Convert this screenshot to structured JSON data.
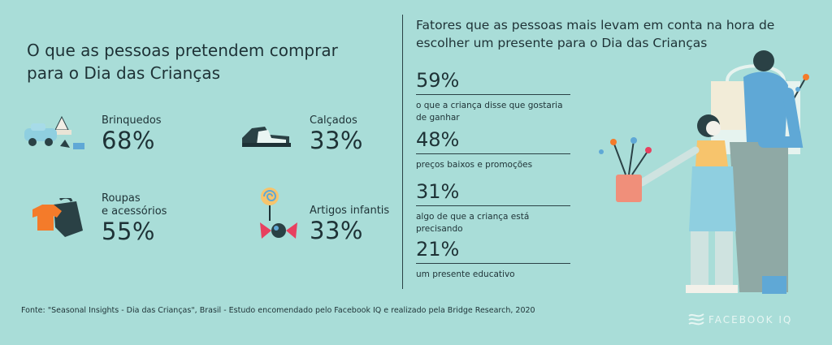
{
  "left": {
    "title_line1": "O que as pessoas pretendem comprar",
    "title_line2": "para o Dia das Crianças",
    "items": [
      {
        "label_line1": "Brinquedos",
        "label_line2": "",
        "percent": "68%",
        "icon": "toy-car-icon"
      },
      {
        "label_line1": "Calçados",
        "label_line2": "",
        "percent": "33%",
        "icon": "shoes-icon"
      },
      {
        "label_line1": "Roupas",
        "label_line2": "e acessórios",
        "percent": "55%",
        "icon": "clothes-icon"
      },
      {
        "label_line1": "Artigos infantis",
        "label_line2": "",
        "percent": "33%",
        "icon": "candy-icon"
      }
    ]
  },
  "right": {
    "title_line1": "Fatores que as pessoas mais levam em conta na hora de",
    "title_line2": "escolher um presente para o Dia das Crianças",
    "stats": [
      {
        "percent": "59%",
        "desc_line1": "o que a criança disse que gostaria",
        "desc_line2": "de ganhar"
      },
      {
        "percent": "48%",
        "desc_line1": "preços baixos e promoções",
        "desc_line2": ""
      },
      {
        "percent": "31%",
        "desc_line1": "algo de que a criança está precisando",
        "desc_line2": ""
      },
      {
        "percent": "21%",
        "desc_line1": "um presente educativo",
        "desc_line2": ""
      }
    ]
  },
  "footer": {
    "source": "Fonte: \"Seasonal Insights - Dia das Crianças\", Brasil - Estudo encomendado pelo Facebook IQ e realizado pela Bridge Research, 2020"
  },
  "brand": {
    "name": "FACEBOOK IQ",
    "icon": "facebook-iq-logo-icon"
  },
  "colors": {
    "background": "#a9ddd8",
    "text": "#1e3236",
    "accent_orange": "#f47b2a",
    "accent_yellow": "#f7c46c",
    "accent_blue": "#5fa8d6"
  }
}
